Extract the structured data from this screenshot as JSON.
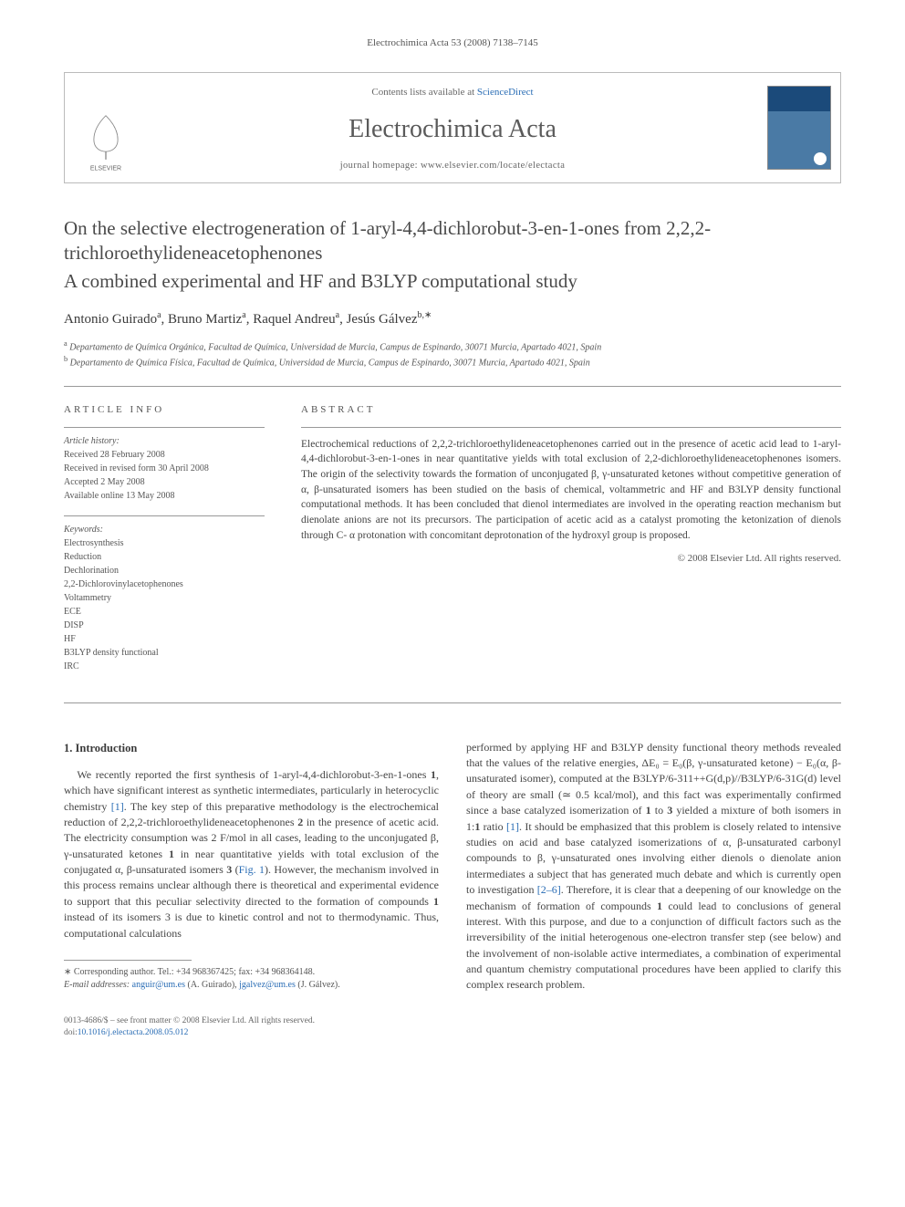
{
  "running_header": "Electrochimica Acta 53 (2008) 7138–7145",
  "header": {
    "contents_prefix": "Contents lists available at ",
    "contents_link": "ScienceDirect",
    "journal": "Electrochimica Acta",
    "homepage_prefix": "journal homepage: ",
    "homepage": "www.elsevier.com/locate/electacta",
    "publisher_logo_label": "ELSEVIER"
  },
  "title_line1": "On the selective electrogeneration of 1-aryl-4,4-dichlorobut-3-en-1-ones from 2,2,2-trichloroethylideneacetophenones",
  "title_line2": "A combined experimental and HF and B3LYP computational study",
  "authors_html": "Antonio Guirado<sup>a</sup>, Bruno Martiz<sup>a</sup>, Raquel Andreu<sup>a</sup>, Jesús Gálvez<sup>b,∗</sup>",
  "affiliations": [
    {
      "tag": "a",
      "text": "Departamento de Química Orgánica, Facultad de Química, Universidad de Murcia, Campus de Espinardo, 30071 Murcia, Apartado 4021, Spain"
    },
    {
      "tag": "b",
      "text": "Departamento de Química Física, Facultad de Química, Universidad de Murcia, Campus de Espinardo, 30071 Murcia, Apartado 4021, Spain"
    }
  ],
  "article_info": {
    "label": "ARTICLE INFO",
    "history_heading": "Article history:",
    "history": [
      "Received 28 February 2008",
      "Received in revised form 30 April 2008",
      "Accepted 2 May 2008",
      "Available online 13 May 2008"
    ],
    "keywords_heading": "Keywords:",
    "keywords": [
      "Electrosynthesis",
      "Reduction",
      "Dechlorination",
      "2,2-Dichlorovinylacetophenones",
      "Voltammetry",
      "ECE",
      "DISP",
      "HF",
      "B3LYP density functional",
      "IRC"
    ]
  },
  "abstract": {
    "label": "ABSTRACT",
    "text": "Electrochemical reductions of 2,2,2-trichloroethylideneacetophenones carried out in the presence of acetic acid lead to 1-aryl-4,4-dichlorobut-3-en-1-ones in near quantitative yields with total exclusion of 2,2-dichloroethylideneacetophenones isomers. The origin of the selectivity towards the formation of unconjugated β, γ-unsaturated ketones without competitive generation of α, β-unsaturated isomers has been studied on the basis of chemical, voltammetric and HF and B3LYP density functional computational methods. It has been concluded that dienol intermediates are involved in the operating reaction mechanism but dienolate anions are not its precursors. The participation of acetic acid as a catalyst promoting the ketonization of dienols through C- α protonation with concomitant deprotonation of the hydroxyl group is proposed.",
    "copyright": "© 2008 Elsevier Ltd. All rights reserved."
  },
  "body": {
    "heading": "1. Introduction",
    "col1": "We recently reported the first synthesis of 1-aryl-4,4-dichlorobut-3-en-1-ones 1, which have significant interest as synthetic intermediates, particularly in heterocyclic chemistry [1]. The key step of this preparative methodology is the electrochemical reduction of 2,2,2-trichloroethylideneacetophenones 2 in the presence of acetic acid. The electricity consumption was 2 F/mol in all cases, leading to the unconjugated β, γ-unsaturated ketones 1 in near quantitative yields with total exclusion of the conjugated α, β-unsaturated isomers 3 (Fig. 1). However, the mechanism involved in this process remains unclear although there is theoretical and experimental evidence to support that this peculiar selectivity directed to the formation of compounds 1 instead of its isomers 3 is due to kinetic control and not to thermodynamic. Thus, computational calculations",
    "col2": "performed by applying HF and B3LYP density functional theory methods revealed that the values of the relative energies, ΔE₀ = E₀(β, γ-unsaturated ketone) − E₀(α, β-unsaturated isomer), computed at the B3LYP/6-311++G(d,p)//B3LYP/6-31G(d) level of theory are small (≃ 0.5 kcal/mol), and this fact was experimentally confirmed since a base catalyzed isomerization of 1 to 3 yielded a mixture of both isomers in 1:1 ratio [1]. It should be emphasized that this problem is closely related to intensive studies on acid and base catalyzed isomerizations of α, β-unsaturated carbonyl compounds to β, γ-unsaturated ones involving either dienols o dienolate anion intermediates a subject that has generated much debate and which is currently open to investigation [2–6]. Therefore, it is clear that a deepening of our knowledge on the mechanism of formation of compounds 1 could lead to conclusions of general interest. With this purpose, and due to a conjunction of difficult factors such as the irreversibility of the initial heterogenous one-electron transfer step (see below) and the involvement of non-isolable active intermediates, a combination of experimental and quantum chemistry computational procedures have been applied to clarify this complex research problem."
  },
  "footnotes": {
    "corresponding": "∗ Corresponding author. Tel.: +34 968367425; fax: +34 968364148.",
    "emails_label": "E-mail addresses: ",
    "email1": "anguir@um.es",
    "email1_who": " (A. Guirado), ",
    "email2": "jgalvez@um.es",
    "email2_who": " (J. Gálvez)."
  },
  "footer": {
    "line1": "0013-4686/$ – see front matter © 2008 Elsevier Ltd. All rights reserved.",
    "doi_prefix": "doi:",
    "doi": "10.1016/j.electacta.2008.05.012"
  },
  "colors": {
    "link": "#2a6db5",
    "text": "#454545",
    "border": "#999999",
    "background": "#ffffff"
  }
}
